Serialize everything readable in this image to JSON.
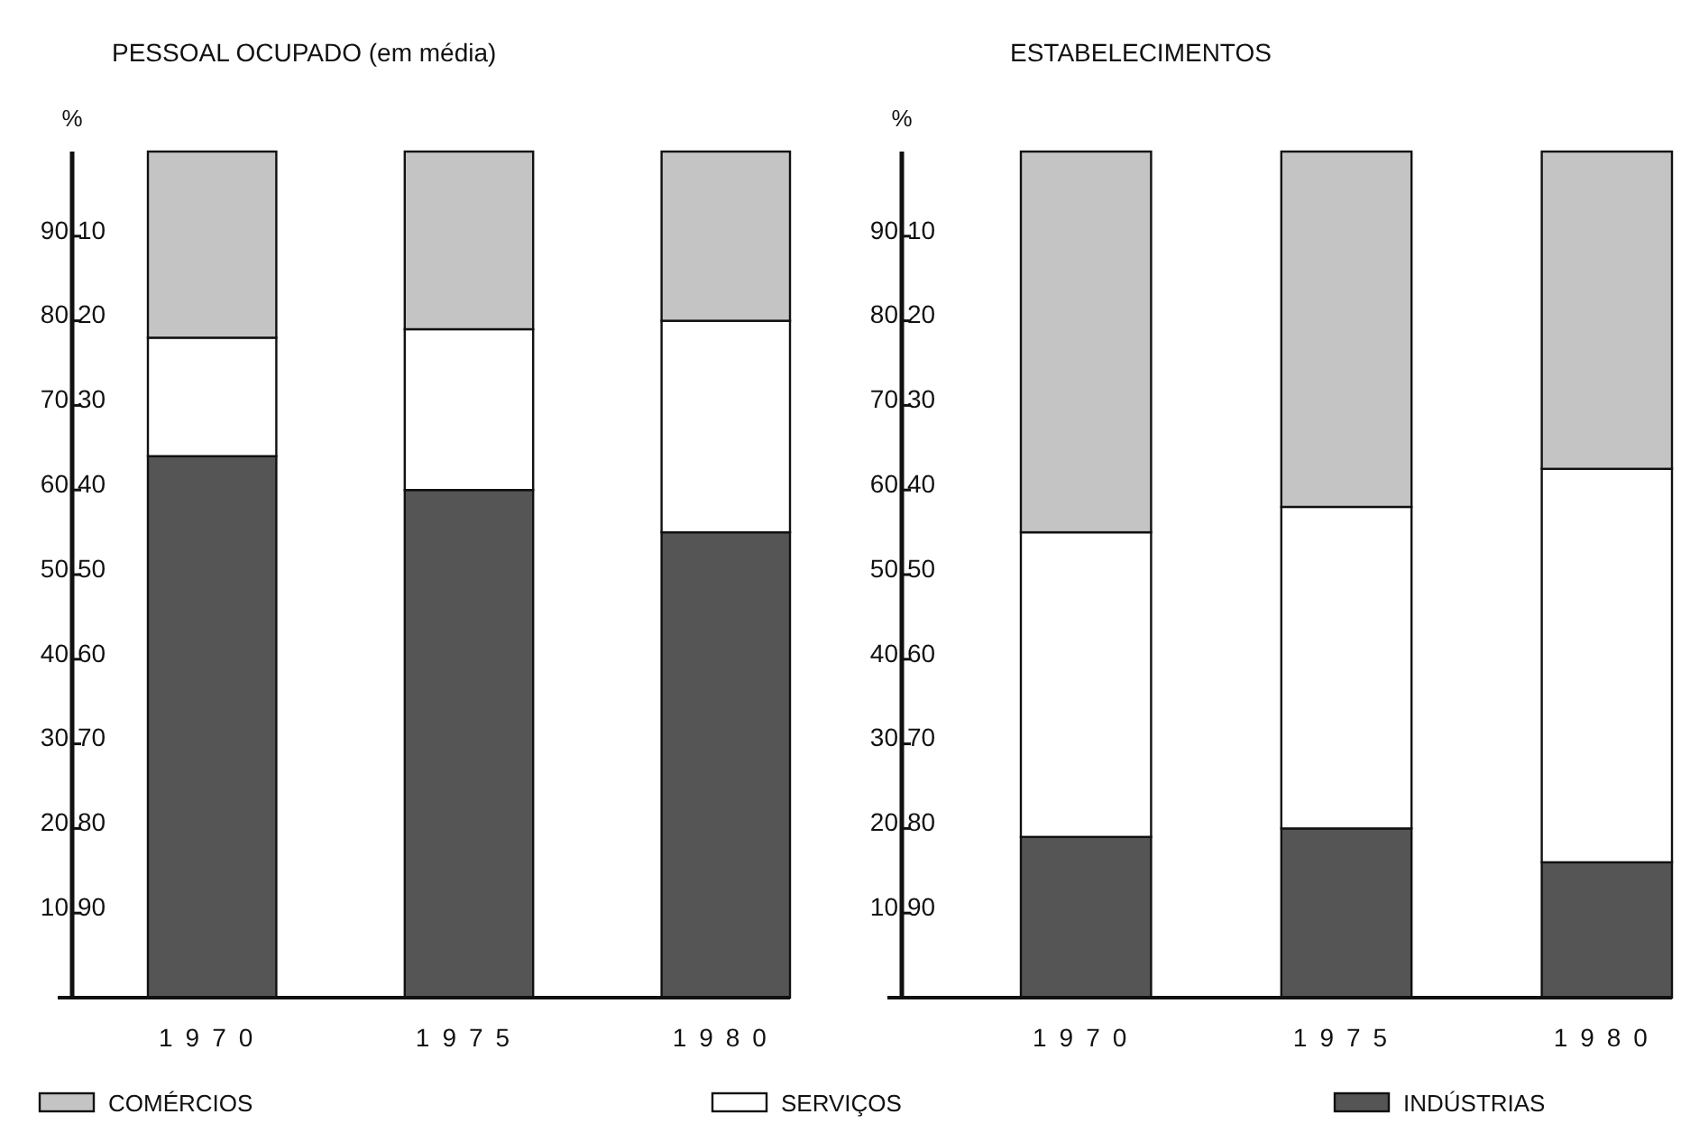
{
  "chart_data": [
    {
      "type": "bar",
      "title": "PESSOAL  OCUPADO (em média)",
      "ylabel": "%",
      "categories": [
        "1970",
        "1975",
        "1980"
      ],
      "stacked": true,
      "ylim": [
        0,
        100
      ],
      "yticks": [
        10,
        20,
        30,
        40,
        50,
        60,
        70,
        80,
        90
      ],
      "y2lim": [
        100,
        0
      ],
      "y2ticks": [
        10,
        20,
        30,
        40,
        50,
        60,
        70,
        80,
        90
      ],
      "grid": false,
      "legend": "bottom",
      "series": [
        {
          "name": "INDÚSTRIAS",
          "color": "#555555",
          "values": [
            64,
            60,
            55
          ]
        },
        {
          "name": "SERVIÇOS",
          "color": "#ffffff",
          "values": [
            14,
            19,
            25
          ]
        },
        {
          "name": "COMÉRCIOS",
          "color": "#c4c4c4",
          "values": [
            22,
            21,
            20
          ]
        }
      ]
    },
    {
      "type": "bar",
      "title": "ESTABELECIMENTOS",
      "ylabel": "%",
      "categories": [
        "1970",
        "1975",
        "1980"
      ],
      "stacked": true,
      "ylim": [
        0,
        100
      ],
      "yticks": [
        10,
        20,
        30,
        40,
        50,
        60,
        70,
        80,
        90
      ],
      "y2lim": [
        100,
        0
      ],
      "y2ticks": [
        10,
        20,
        30,
        40,
        50,
        60,
        70,
        80,
        90
      ],
      "grid": false,
      "series": [
        {
          "color": "#555555",
          "values": [
            19,
            20,
            16
          ]
        },
        {
          "color": "#ffffff",
          "values": [
            36,
            38,
            46.5
          ]
        },
        {
          "color": "#c4c4c4",
          "values": [
            45,
            42,
            37.5
          ]
        }
      ]
    }
  ]
}
